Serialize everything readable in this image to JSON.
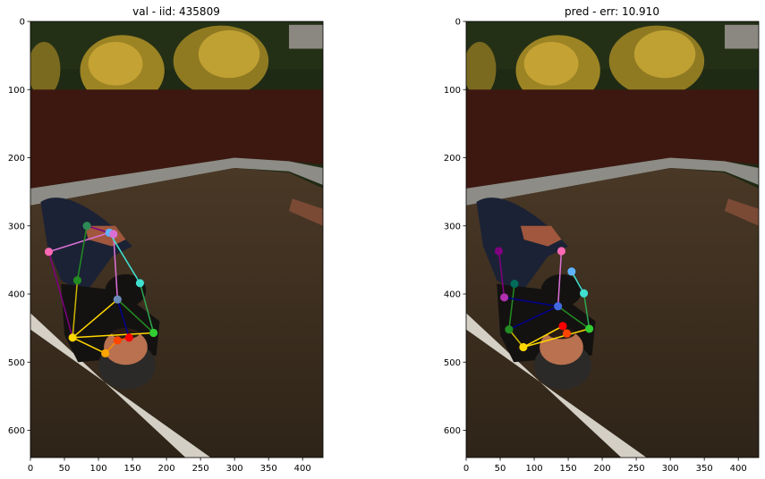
{
  "colors": {
    "sky_bush_bg": "#1f2a14",
    "mulch": "#3d1810",
    "curb": "#8d8c86",
    "asphalt": "#3a2d1f",
    "line_paint": "#e6e2d8",
    "bush_yellow": "#b59a2a",
    "jacket": "#141211",
    "jeans": "#1b2235",
    "helmet": "#2b2a28",
    "face": "#b9714f",
    "skateboard": "#7a4a35"
  },
  "chart_data": [
    {
      "type": "scatter",
      "subtype": "image-with-pose-keypoints",
      "title": "val - iid: 435809",
      "xlim": [
        0,
        430
      ],
      "ylim": [
        640,
        0
      ],
      "xticks": [
        0,
        50,
        100,
        150,
        200,
        250,
        300,
        350,
        400
      ],
      "yticks": [
        0,
        100,
        200,
        300,
        400,
        500,
        600
      ],
      "keypoints": [
        {
          "name": "k1",
          "x": 27,
          "y": 338,
          "color": "#ff69b4"
        },
        {
          "name": "k2",
          "x": 83,
          "y": 300,
          "color": "#2e8b57"
        },
        {
          "name": "k3",
          "x": 116,
          "y": 310,
          "color": "#5fb4ff"
        },
        {
          "name": "k4",
          "x": 122,
          "y": 312,
          "color": "#da70d6"
        },
        {
          "name": "k5",
          "x": 69,
          "y": 380,
          "color": "#228b22"
        },
        {
          "name": "k6",
          "x": 161,
          "y": 384,
          "color": "#40e0d0"
        },
        {
          "name": "k7",
          "x": 128,
          "y": 408,
          "color": "#6a8ab8"
        },
        {
          "name": "k8",
          "x": 62,
          "y": 464,
          "color": "#ffd700"
        },
        {
          "name": "k9",
          "x": 181,
          "y": 457,
          "color": "#32cd32"
        },
        {
          "name": "k10",
          "x": 110,
          "y": 487,
          "color": "#ffa500"
        },
        {
          "name": "k11",
          "x": 128,
          "y": 468,
          "color": "#ff4500"
        },
        {
          "name": "k12",
          "x": 145,
          "y": 464,
          "color": "#ff0000"
        }
      ],
      "bones": [
        {
          "from": 0,
          "to": 2,
          "color": "#da70d6"
        },
        {
          "from": 1,
          "to": 3,
          "color": "#800080"
        },
        {
          "from": 1,
          "to": 4,
          "color": "#228b22"
        },
        {
          "from": 3,
          "to": 6,
          "color": "#da70d6"
        },
        {
          "from": 2,
          "to": 5,
          "color": "#40e0d0"
        },
        {
          "from": 5,
          "to": 8,
          "color": "#2ea44f"
        },
        {
          "from": 4,
          "to": 7,
          "color": "#c8b400"
        },
        {
          "from": 7,
          "to": 8,
          "color": "#ffd700"
        },
        {
          "from": 7,
          "to": 6,
          "color": "#ffd700"
        },
        {
          "from": 6,
          "to": 8,
          "color": "#228b22"
        },
        {
          "from": 7,
          "to": 9,
          "color": "#ffd700"
        },
        {
          "from": 9,
          "to": 10,
          "color": "#ff8c00"
        },
        {
          "from": 10,
          "to": 11,
          "color": "#ff4500"
        },
        {
          "from": 6,
          "to": 11,
          "color": "#00008b"
        },
        {
          "from": 0,
          "to": 7,
          "color": "#800080"
        }
      ]
    },
    {
      "type": "scatter",
      "subtype": "image-with-pose-keypoints",
      "title": "pred - err: 10.910",
      "xlim": [
        0,
        430
      ],
      "ylim": [
        640,
        0
      ],
      "xticks": [
        0,
        50,
        100,
        150,
        200,
        250,
        300,
        350,
        400
      ],
      "yticks": [
        0,
        100,
        200,
        300,
        400,
        500,
        600
      ],
      "keypoints": [
        {
          "name": "k1",
          "x": 48,
          "y": 337,
          "color": "#800080"
        },
        {
          "name": "k2",
          "x": 71,
          "y": 385,
          "color": "#006b5b"
        },
        {
          "name": "k3",
          "x": 140,
          "y": 337,
          "color": "#ff69b4"
        },
        {
          "name": "k4",
          "x": 56,
          "y": 405,
          "color": "#b030b0"
        },
        {
          "name": "k5",
          "x": 63,
          "y": 452,
          "color": "#228b22"
        },
        {
          "name": "k6",
          "x": 173,
          "y": 399,
          "color": "#40e0d0"
        },
        {
          "name": "k7",
          "x": 135,
          "y": 418,
          "color": "#4169e1"
        },
        {
          "name": "k8",
          "x": 84,
          "y": 478,
          "color": "#ffd700"
        },
        {
          "name": "k9",
          "x": 181,
          "y": 451,
          "color": "#32cd32"
        },
        {
          "name": "k10",
          "x": 155,
          "y": 367,
          "color": "#5fb4ff"
        },
        {
          "name": "k11",
          "x": 148,
          "y": 458,
          "color": "#ff4500"
        },
        {
          "name": "k12",
          "x": 142,
          "y": 447,
          "color": "#ff0000"
        }
      ],
      "bones": [
        {
          "from": 0,
          "to": 3,
          "color": "#800080"
        },
        {
          "from": 1,
          "to": 4,
          "color": "#228b22"
        },
        {
          "from": 2,
          "to": 6,
          "color": "#da70d6"
        },
        {
          "from": 9,
          "to": 5,
          "color": "#40e0d0"
        },
        {
          "from": 5,
          "to": 8,
          "color": "#2ea44f"
        },
        {
          "from": 4,
          "to": 7,
          "color": "#c8b400"
        },
        {
          "from": 7,
          "to": 8,
          "color": "#ffd700"
        },
        {
          "from": 6,
          "to": 8,
          "color": "#228b22"
        },
        {
          "from": 3,
          "to": 6,
          "color": "#00008b"
        },
        {
          "from": 4,
          "to": 6,
          "color": "#00008b"
        },
        {
          "from": 7,
          "to": 11,
          "color": "#ffd700"
        },
        {
          "from": 11,
          "to": 10,
          "color": "#ff4500"
        }
      ]
    }
  ]
}
